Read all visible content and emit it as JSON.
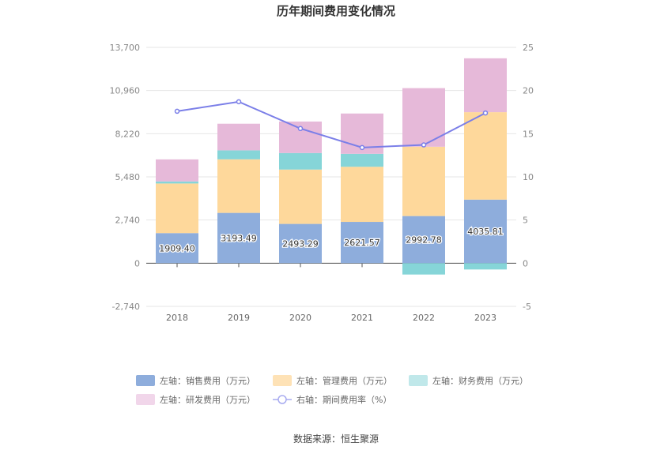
{
  "chart_data": {
    "type": "bar",
    "stacked": true,
    "title": "历年期间费用变化情况",
    "categories": [
      "2018",
      "2019",
      "2020",
      "2021",
      "2022",
      "2023"
    ],
    "left_axis": {
      "min": -2740,
      "max": 13700,
      "ticks": [
        -2740,
        0,
        2740,
        5480,
        8220,
        10960,
        13700
      ],
      "tick_labels": [
        "-2,740",
        "0",
        "2,740",
        "5,480",
        "8,220",
        "10,960",
        "13,700"
      ]
    },
    "right_axis": {
      "min": -5,
      "max": 25,
      "ticks": [
        -5,
        0,
        5,
        10,
        15,
        20,
        25
      ],
      "tick_labels": [
        "-5",
        "0",
        "5",
        "10",
        "15",
        "20",
        "25"
      ]
    },
    "series": [
      {
        "name": "左轴：销售费用（万元）",
        "color": "#8eaddc",
        "values": [
          1909.4,
          3193.49,
          2493.29,
          2621.57,
          2992.78,
          4035.81
        ],
        "labels": [
          "1909.40",
          "3193.49",
          "2493.29",
          "2621.57",
          "2992.78",
          "4035.81"
        ]
      },
      {
        "name": "左轴：管理费用（万元）",
        "color": "#fed89b",
        "values": [
          3150,
          3400,
          3450,
          3500,
          4400,
          5550
        ]
      },
      {
        "name": "左轴：财务费用（万元）",
        "color": "#86d5d8",
        "values": [
          130,
          570,
          1050,
          820,
          -720,
          -400
        ]
      },
      {
        "name": "左轴：研发费用（万元）",
        "color": "#e6b9d9",
        "values": [
          1400,
          1690,
          2000,
          2560,
          3720,
          3420
        ]
      }
    ],
    "line": {
      "name": "右轴：期间费用率（%）",
      "color": "#7b7fe8",
      "values": [
        17.6,
        18.7,
        15.6,
        13.4,
        13.7,
        17.4
      ]
    }
  },
  "legend": [
    {
      "label": "左轴：销售费用（万元）",
      "color": "#8eaddc",
      "type": "box"
    },
    {
      "label": "左轴：管理费用（万元）",
      "color": "#fee2b6",
      "type": "box"
    },
    {
      "label": "左轴：财务费用（万元）",
      "color": "#c0e8ea",
      "type": "box"
    },
    {
      "label": "左轴：研发费用（万元）",
      "color": "#f1d6ea",
      "type": "box"
    },
    {
      "label": "右轴：期间费用率（%）",
      "color": "#a8abf0",
      "type": "line"
    }
  ],
  "source": "数据来源：恒生聚源"
}
